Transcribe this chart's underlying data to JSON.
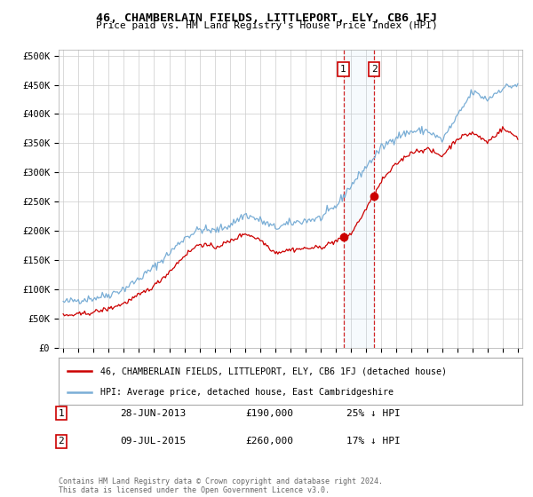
{
  "title": "46, CHAMBERLAIN FIELDS, LITTLEPORT, ELY, CB6 1FJ",
  "subtitle": "Price paid vs. HM Land Registry's House Price Index (HPI)",
  "ylim": [
    0,
    510000
  ],
  "yticks": [
    0,
    50000,
    100000,
    150000,
    200000,
    250000,
    300000,
    350000,
    400000,
    450000,
    500000
  ],
  "ytick_labels": [
    "£0",
    "£50K",
    "£100K",
    "£150K",
    "£200K",
    "£250K",
    "£300K",
    "£350K",
    "£400K",
    "£450K",
    "£500K"
  ],
  "xlim_start": 1994.7,
  "xlim_end": 2025.3,
  "transaction1_date": 2013.49,
  "transaction1_price": 190000,
  "transaction2_date": 2015.52,
  "transaction2_price": 260000,
  "legend_line1": "46, CHAMBERLAIN FIELDS, LITTLEPORT, ELY, CB6 1FJ (detached house)",
  "legend_line2": "HPI: Average price, detached house, East Cambridgeshire",
  "annotation1_date": "28-JUN-2013",
  "annotation1_price": "£190,000",
  "annotation1_hpi": "25% ↓ HPI",
  "annotation2_date": "09-JUL-2015",
  "annotation2_price": "£260,000",
  "annotation2_hpi": "17% ↓ HPI",
  "footnote": "Contains HM Land Registry data © Crown copyright and database right 2024.\nThis data is licensed under the Open Government Licence v3.0.",
  "red_color": "#cc0000",
  "blue_color": "#7aaed6",
  "background_color": "#ffffff",
  "grid_color": "#cccccc",
  "hpi_anchors_dates": [
    1995.0,
    1996.0,
    1997.0,
    1998.0,
    1999.0,
    2000.0,
    2001.0,
    2002.0,
    2003.0,
    2004.0,
    2005.0,
    2006.0,
    2007.0,
    2008.0,
    2009.0,
    2010.0,
    2011.0,
    2012.0,
    2013.0,
    2014.0,
    2015.0,
    2016.0,
    2017.0,
    2018.0,
    2019.0,
    2020.0,
    2021.0,
    2022.0,
    2023.0,
    2024.0,
    2025.0
  ],
  "hpi_anchors_vals": [
    78000,
    82000,
    85000,
    91000,
    101000,
    118000,
    138000,
    162000,
    188000,
    203000,
    200000,
    210000,
    228000,
    218000,
    205000,
    213000,
    218000,
    222000,
    242000,
    278000,
    310000,
    342000,
    362000,
    370000,
    372000,
    355000,
    395000,
    438000,
    425000,
    445000,
    450000
  ],
  "pp_anchors_dates": [
    1995.0,
    1996.0,
    1997.0,
    1998.0,
    1999.0,
    2000.0,
    2001.0,
    2002.0,
    2003.0,
    2004.0,
    2005.0,
    2006.0,
    2007.0,
    2008.0,
    2009.0,
    2010.0,
    2011.0,
    2012.0,
    2013.0,
    2013.49,
    2014.0,
    2015.0,
    2015.52,
    2016.0,
    2017.0,
    2018.0,
    2019.0,
    2020.0,
    2021.0,
    2022.0,
    2023.0,
    2024.0,
    2025.0
  ],
  "pp_anchors_vals": [
    55000,
    57000,
    61000,
    67000,
    76000,
    90000,
    106000,
    130000,
    158000,
    178000,
    172000,
    182000,
    196000,
    185000,
    163000,
    168000,
    170000,
    172000,
    183000,
    190000,
    195000,
    238000,
    260000,
    285000,
    315000,
    335000,
    340000,
    328000,
    358000,
    368000,
    352000,
    375000,
    360000
  ]
}
